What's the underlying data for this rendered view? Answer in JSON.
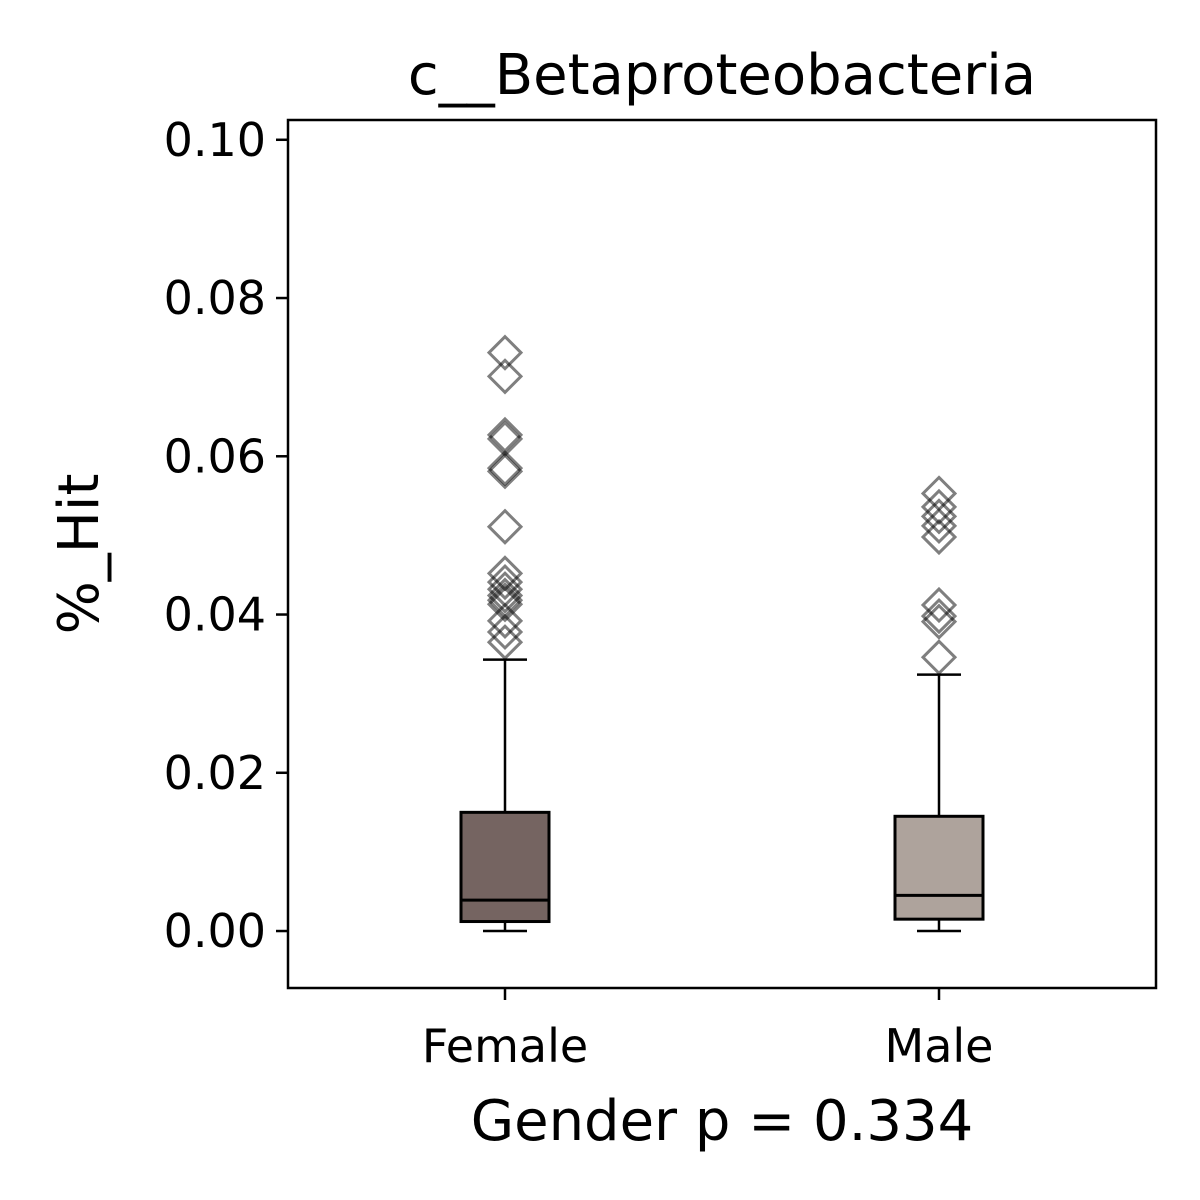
{
  "chart_data": {
    "type": "boxplot",
    "title": "c__Betaproteobacteria",
    "xlabel": "Gender p = 0.334",
    "ylabel": "%_Hit",
    "ylim": [
      -0.0072,
      0.1025
    ],
    "yticks": [
      0.0,
      0.02,
      0.04,
      0.06,
      0.08,
      0.1
    ],
    "ytick_labels": [
      "0.00",
      "0.02",
      "0.04",
      "0.06",
      "0.08",
      "0.10"
    ],
    "categories": [
      "Female",
      "Male"
    ],
    "grid": false,
    "legend": "none",
    "boxes": [
      {
        "name": "Female",
        "color": "#756461",
        "whisker_low": 0.0,
        "q1": 0.0012,
        "median": 0.0039,
        "q3": 0.015,
        "whisker_high": 0.0343,
        "outliers": [
          0.0731,
          0.0701,
          0.0627,
          0.0622,
          0.0585,
          0.0581,
          0.0511,
          0.0452,
          0.0441,
          0.0432,
          0.0424,
          0.0418,
          0.0413,
          0.0392,
          0.0378,
          0.0365
        ]
      },
      {
        "name": "Male",
        "color": "#ae a39c",
        "whisker_low": 0.0,
        "q1": 0.0015,
        "median": 0.0045,
        "q3": 0.0145,
        "whisker_high": 0.0324,
        "outliers": [
          0.0553,
          0.0536,
          0.0524,
          0.0512,
          0.0498,
          0.0412,
          0.0398,
          0.0391,
          0.0346
        ]
      }
    ]
  }
}
